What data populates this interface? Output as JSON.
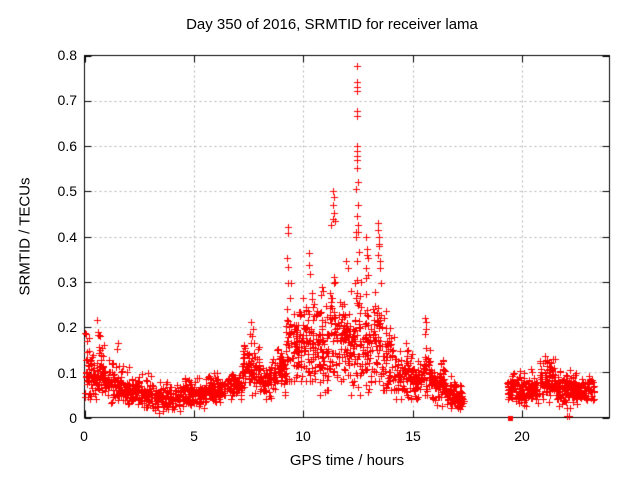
{
  "chart_data": {
    "type": "scatter",
    "title": "Day 350 of 2016, SRMTID for receiver lama",
    "xlabel": "GPS time / hours",
    "ylabel": "SRMTID / TECUs",
    "xlim": [
      0,
      24
    ],
    "ylim": [
      0,
      0.8
    ],
    "x_ticks": [
      0,
      5,
      10,
      15,
      20
    ],
    "y_ticks": [
      0,
      0.1,
      0.2,
      0.3,
      0.4,
      0.5,
      0.6,
      0.7,
      0.8
    ],
    "x_tick_labels": [
      "0",
      "5",
      "10",
      "15",
      "20"
    ],
    "y_tick_labels": [
      "0",
      "0.1",
      "0.2",
      "0.3",
      "0.4",
      "0.5",
      "0.6",
      "0.7",
      "0.8"
    ],
    "grid_x": [
      5,
      10,
      15,
      20
    ],
    "grid_y": [
      0.1,
      0.2,
      0.3,
      0.4,
      0.5,
      0.6,
      0.7
    ],
    "grid_on": true,
    "legend": "none",
    "marker": "plus",
    "marker_color": "#ff0000",
    "grid_color": "#b4b4b4",
    "axis_color": "#000000",
    "background_color": "#ffffff",
    "seed": 7,
    "envelope_bins_format": [
      "t_start_h",
      "t_end_h",
      "min_tecu",
      "max_tecu",
      "typical_tecu",
      "n_points"
    ],
    "envelope": [
      [
        0.0,
        0.3,
        0.03,
        0.19,
        0.09,
        40
      ],
      [
        0.3,
        0.6,
        0.04,
        0.17,
        0.09,
        35
      ],
      [
        0.6,
        0.9,
        0.05,
        0.19,
        0.11,
        35
      ],
      [
        0.9,
        1.2,
        0.04,
        0.13,
        0.08,
        32
      ],
      [
        1.2,
        1.8,
        0.03,
        0.15,
        0.07,
        60
      ],
      [
        1.8,
        2.5,
        0.03,
        0.12,
        0.06,
        70
      ],
      [
        2.5,
        3.2,
        0.02,
        0.1,
        0.05,
        70
      ],
      [
        3.2,
        4.5,
        0.01,
        0.08,
        0.04,
        130
      ],
      [
        4.5,
        5.5,
        0.02,
        0.09,
        0.05,
        100
      ],
      [
        5.5,
        6.5,
        0.03,
        0.1,
        0.06,
        100
      ],
      [
        6.5,
        7.2,
        0.04,
        0.12,
        0.07,
        70
      ],
      [
        7.2,
        8.0,
        0.05,
        0.19,
        0.1,
        85
      ],
      [
        8.0,
        8.7,
        0.04,
        0.15,
        0.08,
        70
      ],
      [
        8.7,
        9.2,
        0.05,
        0.18,
        0.1,
        55
      ],
      [
        9.2,
        9.5,
        0.08,
        0.4,
        0.15,
        35
      ],
      [
        9.5,
        10.0,
        0.08,
        0.3,
        0.15,
        60
      ],
      [
        10.0,
        10.5,
        0.08,
        0.36,
        0.16,
        60
      ],
      [
        10.5,
        11.2,
        0.05,
        0.3,
        0.14,
        80
      ],
      [
        11.2,
        11.5,
        0.1,
        0.46,
        0.19,
        40
      ],
      [
        11.5,
        12.1,
        0.08,
        0.34,
        0.17,
        70
      ],
      [
        12.1,
        12.35,
        0.05,
        0.3,
        0.14,
        30
      ],
      [
        12.35,
        12.6,
        0.05,
        0.5,
        0.22,
        35
      ],
      [
        12.6,
        13.1,
        0.05,
        0.36,
        0.15,
        55
      ],
      [
        13.1,
        13.6,
        0.08,
        0.38,
        0.17,
        55
      ],
      [
        13.6,
        14.2,
        0.06,
        0.25,
        0.12,
        65
      ],
      [
        14.2,
        15.0,
        0.04,
        0.18,
        0.09,
        85
      ],
      [
        15.0,
        15.4,
        0.04,
        0.15,
        0.08,
        45
      ],
      [
        15.4,
        15.8,
        0.05,
        0.2,
        0.1,
        45
      ],
      [
        15.8,
        16.5,
        0.02,
        0.13,
        0.07,
        75
      ],
      [
        16.5,
        17.0,
        0.02,
        0.1,
        0.05,
        55
      ],
      [
        17.0,
        17.35,
        0.01,
        0.08,
        0.04,
        35
      ],
      [
        19.3,
        19.8,
        0.02,
        0.1,
        0.06,
        50
      ],
      [
        19.8,
        20.8,
        0.02,
        0.11,
        0.06,
        105
      ],
      [
        20.8,
        21.5,
        0.03,
        0.13,
        0.08,
        75
      ],
      [
        21.5,
        22.3,
        0.02,
        0.11,
        0.06,
        85
      ],
      [
        22.3,
        23.3,
        0.03,
        0.11,
        0.06,
        100
      ]
    ],
    "notable_points": [
      [
        0.05,
        0.185
      ],
      [
        0.1,
        0.17
      ],
      [
        0.59,
        0.216
      ],
      [
        0.62,
        0.19
      ],
      [
        0.68,
        0.182
      ],
      [
        1.5,
        0.152
      ],
      [
        1.55,
        0.165
      ],
      [
        7.55,
        0.185
      ],
      [
        7.62,
        0.21
      ],
      [
        7.7,
        0.195
      ],
      [
        9.27,
        0.352
      ],
      [
        9.28,
        0.42
      ],
      [
        9.3,
        0.408
      ],
      [
        9.31,
        0.332
      ],
      [
        9.29,
        0.298
      ],
      [
        10.25,
        0.338
      ],
      [
        10.27,
        0.363
      ],
      [
        10.3,
        0.318
      ],
      [
        11.36,
        0.47
      ],
      [
        11.38,
        0.5
      ],
      [
        11.39,
        0.488
      ],
      [
        11.4,
        0.452
      ],
      [
        11.37,
        0.438
      ],
      [
        11.95,
        0.345
      ],
      [
        12.05,
        0.33
      ],
      [
        12.45,
        0.776
      ],
      [
        12.44,
        0.742
      ],
      [
        12.46,
        0.731
      ],
      [
        12.45,
        0.722
      ],
      [
        12.46,
        0.678
      ],
      [
        12.47,
        0.667
      ],
      [
        12.44,
        0.601
      ],
      [
        12.46,
        0.589
      ],
      [
        12.45,
        0.578
      ],
      [
        12.47,
        0.568
      ],
      [
        12.46,
        0.551
      ],
      [
        12.48,
        0.52
      ],
      [
        12.43,
        0.505
      ],
      [
        12.49,
        0.47
      ],
      [
        12.46,
        0.445
      ],
      [
        12.5,
        0.425
      ],
      [
        12.42,
        0.4
      ],
      [
        12.86,
        0.33
      ],
      [
        12.88,
        0.4
      ],
      [
        12.9,
        0.372
      ],
      [
        12.92,
        0.36
      ],
      [
        12.94,
        0.352
      ],
      [
        12.96,
        0.315
      ],
      [
        13.4,
        0.36
      ],
      [
        13.42,
        0.43
      ],
      [
        13.44,
        0.415
      ],
      [
        13.46,
        0.4
      ],
      [
        13.48,
        0.383
      ],
      [
        13.5,
        0.345
      ],
      [
        13.52,
        0.33
      ],
      [
        15.56,
        0.22
      ],
      [
        15.58,
        0.185
      ],
      [
        15.6,
        0.21
      ],
      [
        15.62,
        0.195
      ],
      [
        20.95,
        0.12
      ],
      [
        21.05,
        0.135
      ],
      [
        21.15,
        0.128
      ],
      [
        21.25,
        0.122
      ],
      [
        22.05,
        0.004
      ],
      [
        22.15,
        0.004
      ]
    ],
    "zero_square_point": [
      19.45,
      0
    ]
  }
}
